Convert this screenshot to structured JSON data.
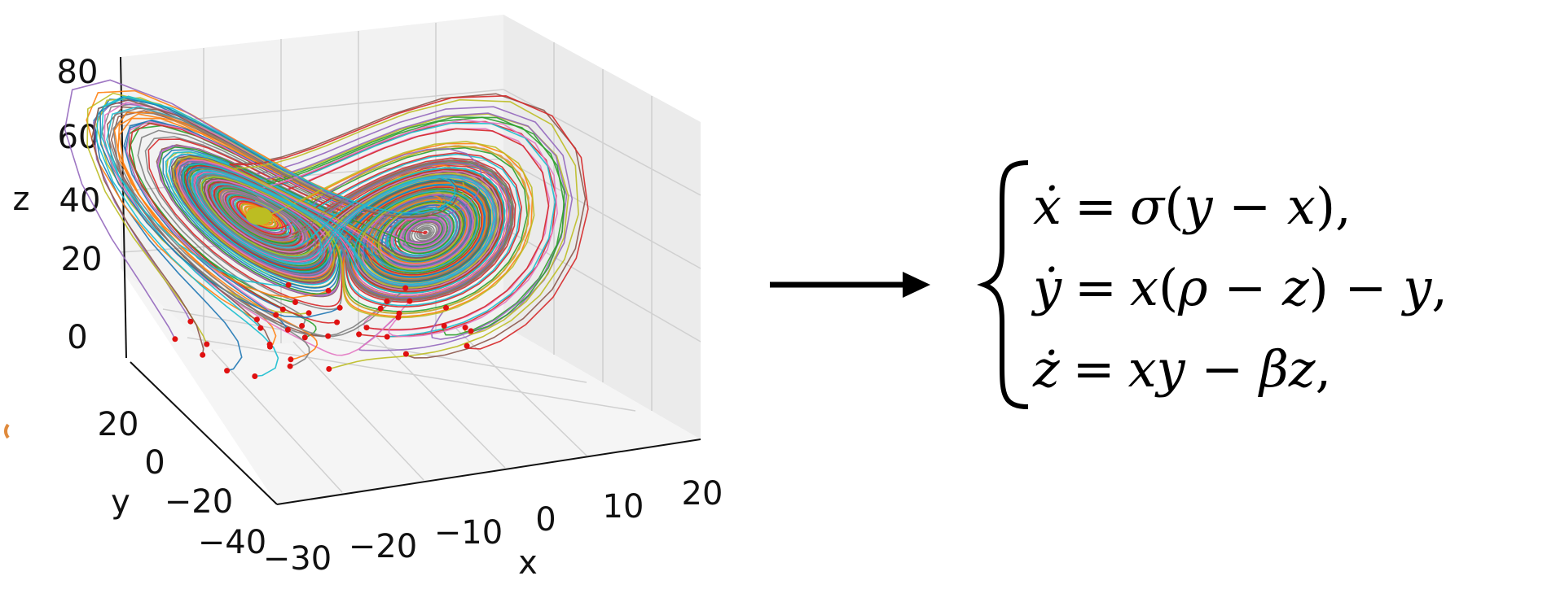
{
  "plot3d": {
    "axis_labels": {
      "x": "x",
      "y": "y",
      "z": "z"
    },
    "x_ticks": [
      "−30",
      "−20",
      "−10",
      "0",
      "10",
      "20"
    ],
    "y_ticks": [
      "−40",
      "−20",
      "0",
      "20"
    ],
    "z_ticks": [
      "0",
      "20",
      "40",
      "60",
      "80"
    ],
    "ranges": {
      "x": [
        -30,
        20
      ],
      "y": [
        -40,
        20
      ],
      "z": [
        0,
        80
      ]
    },
    "grid": true,
    "content": "many colored trajectories of the Lorenz attractor with red starting points"
  },
  "arrow": {
    "direction": "right",
    "color": "#000000"
  },
  "equations": [
    {
      "lhs": "ẋ",
      "eq": "=",
      "rhs": "σ(y − x),",
      "rhs_parts": [
        "σ",
        "(",
        "y",
        " − ",
        "x",
        "),"
      ]
    },
    {
      "lhs": "ẏ",
      "eq": "=",
      "rhs": "x(ρ − z) − y,",
      "rhs_parts": [
        "x",
        "(",
        "ρ",
        " − ",
        "z",
        ") − ",
        "y",
        ","
      ]
    },
    {
      "lhs": "ż",
      "eq": "=",
      "rhs": "xy − βz,",
      "rhs_parts": [
        "xy",
        " − ",
        "βz",
        ","
      ]
    }
  ],
  "colors": [
    "#1f77b4",
    "#ff7f0e",
    "#2ca02c",
    "#d62728",
    "#9467bd",
    "#8c564b",
    "#e377c2",
    "#7f7f7f",
    "#bcbd22",
    "#17becf"
  ]
}
